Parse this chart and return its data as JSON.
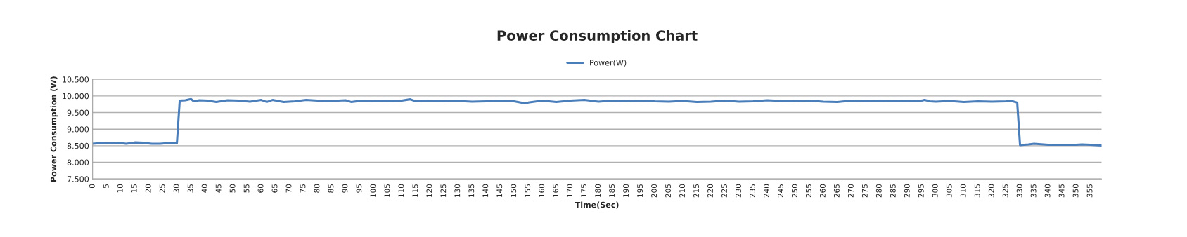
{
  "chart_data": {
    "type": "line",
    "title": "Power Consumption Chart",
    "xlabel": "Time(Sec)",
    "ylabel": "Power Consumption (W)",
    "x": [
      0,
      3,
      6,
      9,
      12,
      15,
      18,
      21,
      24,
      27,
      30,
      31,
      33,
      35,
      36,
      38,
      41,
      44,
      48,
      52,
      56,
      60,
      62,
      64,
      68,
      72,
      76,
      80,
      85,
      90,
      92,
      95,
      100,
      105,
      110,
      113,
      115,
      118,
      125,
      130,
      135,
      140,
      145,
      150,
      153,
      155,
      160,
      165,
      170,
      175,
      180,
      185,
      190,
      195,
      200,
      205,
      210,
      215,
      220,
      225,
      230,
      235,
      240,
      245,
      250,
      255,
      260,
      265,
      270,
      275,
      280,
      285,
      290,
      295,
      296,
      298,
      300,
      305,
      310,
      315,
      320,
      325,
      327,
      329,
      330,
      333,
      335,
      340,
      345,
      350,
      352,
      355,
      359
    ],
    "series": [
      {
        "name": "Power(W)",
        "color": "#4a7ebb",
        "values": [
          8560,
          8580,
          8570,
          8590,
          8560,
          8600,
          8590,
          8560,
          8560,
          8580,
          8580,
          9860,
          9870,
          9910,
          9840,
          9870,
          9860,
          9820,
          9870,
          9860,
          9830,
          9880,
          9820,
          9880,
          9820,
          9840,
          9880,
          9860,
          9850,
          9870,
          9820,
          9850,
          9840,
          9850,
          9860,
          9900,
          9840,
          9850,
          9840,
          9850,
          9830,
          9840,
          9850,
          9840,
          9790,
          9800,
          9860,
          9820,
          9860,
          9880,
          9830,
          9860,
          9840,
          9860,
          9840,
          9830,
          9850,
          9820,
          9830,
          9860,
          9830,
          9840,
          9870,
          9850,
          9840,
          9860,
          9830,
          9820,
          9860,
          9840,
          9850,
          9840,
          9850,
          9860,
          9880,
          9840,
          9830,
          9850,
          9820,
          9840,
          9830,
          9840,
          9850,
          9800,
          8520,
          8540,
          8560,
          8530,
          8530,
          8530,
          8540,
          8530,
          8510
        ]
      }
    ],
    "xlim": [
      0,
      359
    ],
    "xticks": [
      0,
      5,
      10,
      15,
      20,
      25,
      30,
      35,
      40,
      45,
      50,
      55,
      60,
      65,
      70,
      75,
      80,
      85,
      90,
      95,
      100,
      105,
      110,
      115,
      120,
      125,
      130,
      135,
      140,
      145,
      150,
      155,
      160,
      165,
      170,
      175,
      180,
      185,
      190,
      195,
      200,
      205,
      210,
      215,
      220,
      225,
      230,
      235,
      240,
      245,
      250,
      255,
      260,
      265,
      270,
      275,
      280,
      285,
      290,
      295,
      300,
      305,
      310,
      315,
      320,
      325,
      330,
      335,
      340,
      345,
      350,
      355
    ],
    "ylim": [
      7500,
      10500
    ],
    "yticks": [
      {
        "value": 7500,
        "label": "7.500"
      },
      {
        "value": 8000,
        "label": "8.000"
      },
      {
        "value": 8500,
        "label": "8.500"
      },
      {
        "value": 9000,
        "label": "9.000"
      },
      {
        "value": 9500,
        "label": "9.500"
      },
      {
        "value": 10000,
        "label": "10.000"
      },
      {
        "value": 10500,
        "label": "10.500"
      }
    ],
    "grid": "y",
    "legend": "top",
    "marker": "none",
    "line_style": "solid"
  }
}
